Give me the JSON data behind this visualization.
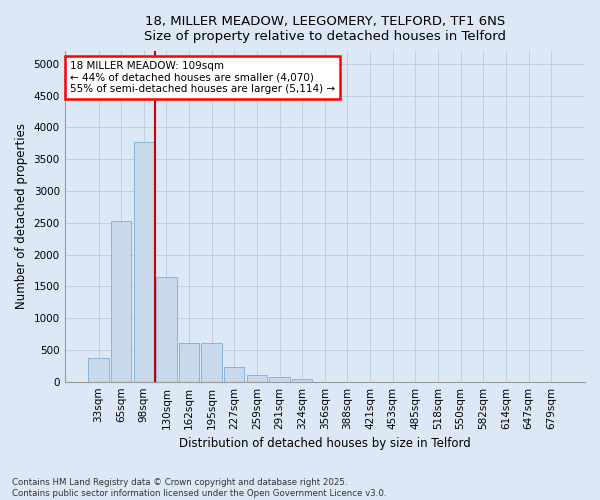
{
  "title_line1": "18, MILLER MEADOW, LEEGOMERY, TELFORD, TF1 6NS",
  "title_line2": "Size of property relative to detached houses in Telford",
  "xlabel": "Distribution of detached houses by size in Telford",
  "ylabel": "Number of detached properties",
  "bar_color": "#c8d9ec",
  "bar_edge_color": "#7bafd4",
  "grid_color": "#c0cfe0",
  "background_color": "#dce8f5",
  "fig_background": "#dce8f5",
  "annotation_text": "18 MILLER MEADOW: 109sqm\n← 44% of detached houses are smaller (4,070)\n55% of semi-detached houses are larger (5,114) →",
  "vline_color": "#cc0000",
  "footer_text": "Contains HM Land Registry data © Crown copyright and database right 2025.\nContains public sector information licensed under the Open Government Licence v3.0.",
  "categories": [
    "33sqm",
    "65sqm",
    "98sqm",
    "130sqm",
    "162sqm",
    "195sqm",
    "227sqm",
    "259sqm",
    "291sqm",
    "324sqm",
    "356sqm",
    "388sqm",
    "421sqm",
    "453sqm",
    "485sqm",
    "518sqm",
    "550sqm",
    "582sqm",
    "614sqm",
    "647sqm",
    "679sqm"
  ],
  "bar_heights": [
    380,
    2530,
    3770,
    1650,
    610,
    610,
    230,
    110,
    70,
    50,
    0,
    0,
    0,
    0,
    0,
    0,
    0,
    0,
    0,
    0,
    0
  ],
  "ylim": [
    0,
    5200
  ],
  "yticks": [
    0,
    500,
    1000,
    1500,
    2000,
    2500,
    3000,
    3500,
    4000,
    4500,
    5000
  ],
  "vline_x": 2.5,
  "figsize": [
    6.0,
    5.0
  ],
  "dpi": 100,
  "title_fontsize": 9.5,
  "axis_label_fontsize": 8.5,
  "tick_fontsize": 7.5,
  "footer_fontsize": 6.2
}
